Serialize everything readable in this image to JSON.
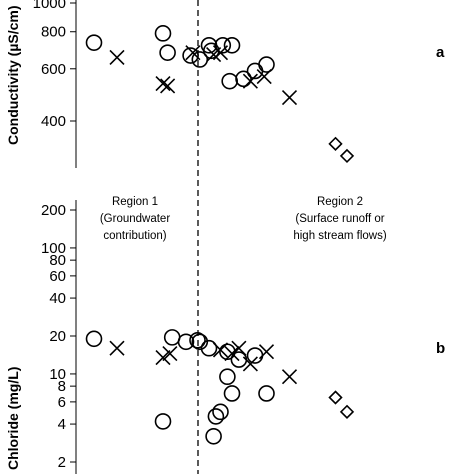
{
  "chart_data": [
    {
      "type": "scatter",
      "panel_label": "a",
      "ylabel": "Conductivity (µS/cm)",
      "yscale": "log",
      "yticks": [
        400,
        600,
        800,
        1000
      ],
      "ylim": [
        300,
        1000
      ],
      "x_divider": 5.0,
      "series": [
        {
          "marker": "circle",
          "points": [
            [
              1.0,
              735
            ],
            [
              4.0,
              790
            ],
            [
              4.2,
              680
            ],
            [
              5.2,
              665
            ],
            [
              5.6,
              645
            ],
            [
              6.0,
              720
            ],
            [
              6.1,
              690
            ],
            [
              6.6,
              720
            ],
            [
              7.0,
              720
            ],
            [
              6.9,
              545
            ],
            [
              7.5,
              555
            ],
            [
              8.0,
              590
            ],
            [
              8.5,
              620
            ]
          ]
        },
        {
          "marker": "cross",
          "points": [
            [
              2.0,
              655
            ],
            [
              4.0,
              535
            ],
            [
              4.2,
              525
            ],
            [
              5.3,
              680
            ],
            [
              6.2,
              670
            ],
            [
              6.5,
              680
            ],
            [
              7.8,
              545
            ],
            [
              8.4,
              565
            ],
            [
              9.5,
              480
            ]
          ]
        },
        {
          "marker": "diamond",
          "points": [
            [
              11.5,
              335
            ],
            [
              12.0,
              305
            ]
          ]
        }
      ]
    },
    {
      "type": "scatter",
      "panel_label": "b",
      "ylabel": "Chloride (mg/L)",
      "yscale": "log",
      "yticks": [
        2,
        4,
        6,
        8,
        10,
        20,
        40,
        60,
        80,
        100,
        200
      ],
      "ylim": [
        1.9,
        230
      ],
      "x_divider": 5.0,
      "series": [
        {
          "marker": "circle",
          "points": [
            [
              1.0,
              19.0
            ],
            [
              4.0,
              4.2
            ],
            [
              4.4,
              19.5
            ],
            [
              5.0,
              18.0
            ],
            [
              5.5,
              18.5
            ],
            [
              5.6,
              18.0
            ],
            [
              6.0,
              16.0
            ],
            [
              6.8,
              15.0
            ],
            [
              6.8,
              9.5
            ],
            [
              7.3,
              13.0
            ],
            [
              8.0,
              14.0
            ],
            [
              6.2,
              3.2
            ],
            [
              6.3,
              4.6
            ],
            [
              6.5,
              5.0
            ],
            [
              7.0,
              7.0
            ],
            [
              8.5,
              7.0
            ]
          ]
        },
        {
          "marker": "cross",
          "points": [
            [
              2.0,
              16.0
            ],
            [
              4.0,
              13.5
            ],
            [
              4.3,
              14.5
            ],
            [
              6.5,
              15.5
            ],
            [
              7.0,
              14.5
            ],
            [
              7.3,
              16.0
            ],
            [
              7.8,
              12.0
            ],
            [
              8.5,
              15.0
            ],
            [
              9.5,
              9.5
            ]
          ]
        },
        {
          "marker": "diamond",
          "points": [
            [
              11.5,
              6.5
            ],
            [
              12.0,
              5.0
            ]
          ]
        }
      ]
    }
  ],
  "region_labels": {
    "region1": {
      "line1": "Region 1",
      "line2": "(Groundwater",
      "line3": "contribution)"
    },
    "region2": {
      "line1": "Region 2",
      "line2": "(Surface runoff or",
      "line3": "high stream flows)"
    }
  }
}
